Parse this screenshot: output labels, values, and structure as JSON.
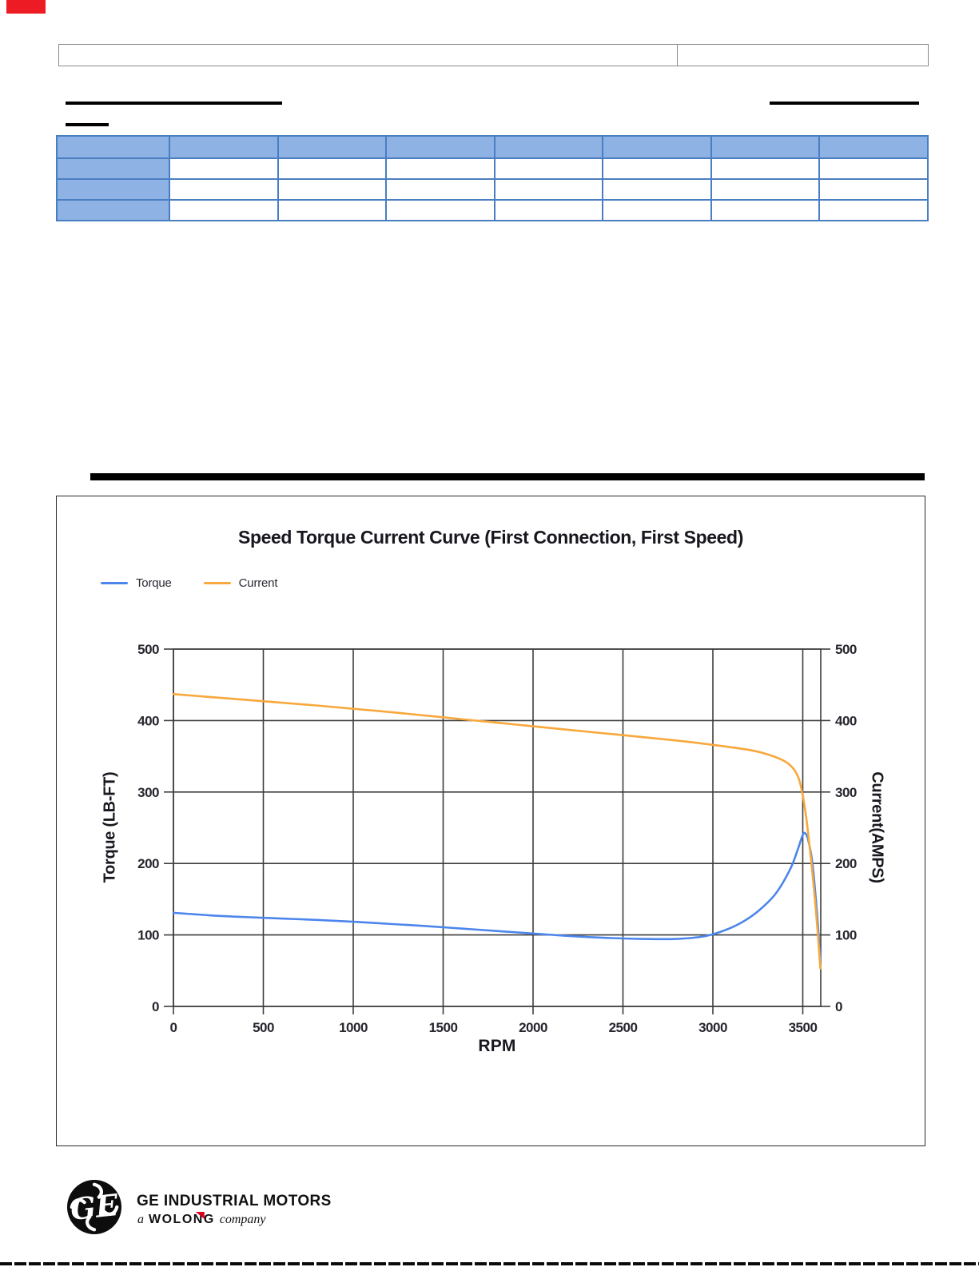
{
  "corner_mark": {
    "color": "#ED1C24"
  },
  "header_table": {
    "left_cell": "",
    "right_cell": ""
  },
  "spec_table": {
    "header_fill": "#8DB2E3",
    "border_color": "#4A7EC2",
    "columns": [
      "",
      "",
      "",
      "",
      "",
      "",
      "",
      ""
    ],
    "rows": [
      [
        "",
        "",
        "",
        "",
        "",
        "",
        "",
        ""
      ],
      [
        "",
        "",
        "",
        "",
        "",
        "",
        "",
        ""
      ],
      [
        "",
        "",
        "",
        "",
        "",
        "",
        "",
        ""
      ]
    ]
  },
  "chart_data": {
    "type": "line",
    "title": "Speed Torque Current Curve (First Connection, First Speed)",
    "xlabel": "RPM",
    "ylabel_left": "Torque (LB-FT)",
    "ylabel_right": "Current(AMPS)",
    "xlim": [
      0,
      3600
    ],
    "ylim_left": [
      0,
      500
    ],
    "ylim_right": [
      0,
      500
    ],
    "x_ticks": [
      0,
      500,
      1000,
      1500,
      2000,
      2500,
      3000,
      3500
    ],
    "y_ticks": [
      0,
      100,
      200,
      300,
      400,
      500
    ],
    "grid": true,
    "legend_position": "top-left",
    "grid_color": "#3d3d3d",
    "series": [
      {
        "name": "Torque",
        "color": "#4C86EC",
        "axis": "left",
        "points": [
          [
            0,
            131
          ],
          [
            200,
            127.5
          ],
          [
            400,
            125
          ],
          [
            600,
            123
          ],
          [
            800,
            121
          ],
          [
            1000,
            118.5
          ],
          [
            1200,
            115.5
          ],
          [
            1400,
            112.5
          ],
          [
            1600,
            109
          ],
          [
            1800,
            105.5
          ],
          [
            2000,
            102
          ],
          [
            2200,
            98.5
          ],
          [
            2400,
            96
          ],
          [
            2600,
            94.5
          ],
          [
            2800,
            94.5
          ],
          [
            2950,
            98
          ],
          [
            3050,
            105
          ],
          [
            3150,
            116
          ],
          [
            3250,
            133
          ],
          [
            3350,
            158
          ],
          [
            3430,
            192
          ],
          [
            3470,
            218
          ],
          [
            3500,
            240
          ],
          [
            3515,
            242
          ],
          [
            3530,
            233
          ],
          [
            3550,
            207
          ],
          [
            3565,
            172
          ],
          [
            3580,
            128
          ],
          [
            3590,
            93
          ],
          [
            3598,
            62
          ]
        ]
      },
      {
        "name": "Current",
        "color": "#F8A83C",
        "axis": "right",
        "points": [
          [
            0,
            437
          ],
          [
            400,
            429
          ],
          [
            800,
            421
          ],
          [
            1200,
            412
          ],
          [
            1600,
            402
          ],
          [
            2000,
            392
          ],
          [
            2400,
            382
          ],
          [
            2800,
            372
          ],
          [
            3000,
            366
          ],
          [
            3200,
            359
          ],
          [
            3300,
            353
          ],
          [
            3400,
            343
          ],
          [
            3450,
            332
          ],
          [
            3480,
            317
          ],
          [
            3500,
            295
          ],
          [
            3515,
            272
          ],
          [
            3530,
            242
          ],
          [
            3550,
            196
          ],
          [
            3570,
            143
          ],
          [
            3585,
            97
          ],
          [
            3598,
            53
          ]
        ]
      }
    ]
  },
  "footer": {
    "monogram": "GE",
    "brand": "GE INDUSTRIAL MOTORS",
    "tagline_prefix": "a",
    "tagline_brand": "WOLONG",
    "tagline_suffix": "company",
    "accent_color": "#D6001C"
  }
}
